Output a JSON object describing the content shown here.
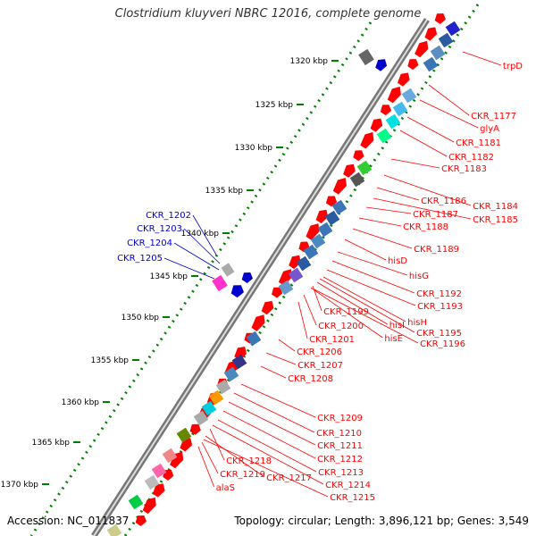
{
  "title": "Clostridium kluyveri NBRC 12016, complete genome",
  "accession": "Accession: NC_011837",
  "topology": "Topology: circular; Length: 3,896,121 bp; Genes: 3,549",
  "colors": {
    "red": "#ff0000",
    "blue": "#0000cc",
    "backbone": "#777777",
    "ruler": "#008000"
  },
  "ticks": [
    "1320 kbp",
    "1325 kbp",
    "1330 kbp",
    "1335 kbp",
    "1340 kbp",
    "1345 kbp",
    "1350 kbp",
    "1355 kbp",
    "1360 kbp",
    "1365 kbp",
    "1370 kbp"
  ],
  "left_labels": [
    "CKR_1202",
    "CKR_1203",
    "CKR_1204",
    "CKR_1205"
  ],
  "right_labels": [
    "trpD",
    "CKR_1177",
    "glyA",
    "CKR_1181",
    "CKR_1182",
    "CKR_1183",
    "CKR_1184",
    "CKR_1186",
    "CKR_1185",
    "CKR_1187",
    "CKR_1188",
    "CKR_1189",
    "hisD",
    "hisG",
    "CKR_1192",
    "CKR_1193",
    "CKR_1199",
    "hisH",
    "hisI",
    "CKR_1200",
    "CKR_1195",
    "hisE",
    "CKR_1201",
    "CKR_1196",
    "CKR_1206",
    "CKR_1207",
    "CKR_1208",
    "CKR_1209",
    "CKR_1210",
    "CKR_1211",
    "CKR_1212",
    "CKR_1218",
    "CKR_1213",
    "CKR_1219",
    "CKR_1217",
    "CKR_1214",
    "alaS",
    "CKR_1215"
  ]
}
